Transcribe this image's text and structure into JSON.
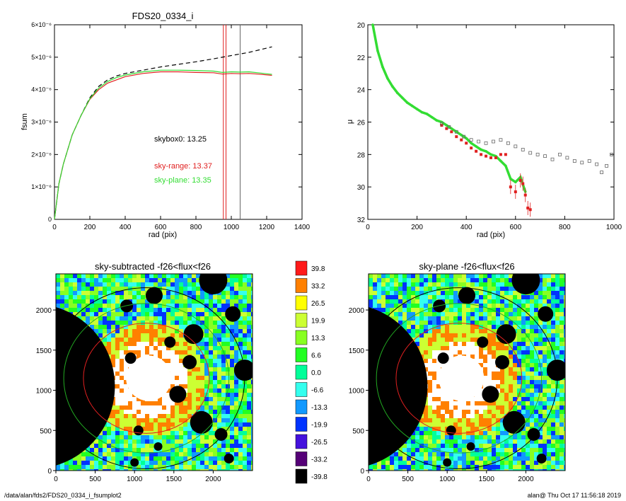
{
  "footer": {
    "path": "/data/alan/fds2/FDS20_0334_i_fsumplot2",
    "stamp": "alan@  Thu Oct 17 11:56:18 2019"
  },
  "colors": {
    "skybox0": "#000000",
    "sky_range": "#e02020",
    "sky_plane": "#33dd33",
    "axis": "#000000",
    "grey_points": "#666666"
  },
  "chart_data": [
    {
      "type": "line",
      "title": "FDS20_0334_i",
      "xlabel": "rad (pix)",
      "ylabel": "fsum",
      "xlim": [
        0,
        1400
      ],
      "ylim": [
        0,
        6e-06
      ],
      "xticks": [
        "0",
        "200",
        "400",
        "600",
        "800",
        "1000",
        "1200",
        "1400"
      ],
      "yticks": [
        "0",
        "1×10⁻⁶",
        "2×10⁻⁶",
        "3×10⁻⁶",
        "4×10⁻⁶",
        "5×10⁻⁶",
        "6×10⁻⁶"
      ],
      "annotations": [
        {
          "text": "skybox0: 13.25",
          "color": "#000000"
        },
        {
          "text": "sky-range: 13.37",
          "color": "#e02020"
        },
        {
          "text": "sky-plane: 13.35",
          "color": "#33dd33"
        }
      ],
      "vlines": [
        {
          "x": 955,
          "color": "#e02020"
        },
        {
          "x": 970,
          "color": "#e02020"
        },
        {
          "x": 1050,
          "color": "#666666"
        }
      ],
      "series": [
        {
          "key": "skybox0",
          "dashed": true,
          "x": [
            0,
            25,
            50,
            100,
            150,
            200,
            250,
            300,
            350,
            400,
            500,
            600,
            700,
            800,
            900,
            1000,
            1100,
            1230
          ],
          "y": [
            0,
            1.1e-06,
            1.7e-06,
            2.6e-06,
            3.2e-06,
            3.75e-06,
            4.1e-06,
            4.3e-06,
            4.42e-06,
            4.5e-06,
            4.6e-06,
            4.7e-06,
            4.78e-06,
            4.86e-06,
            4.95e-06,
            5.05e-06,
            5.15e-06,
            5.32e-06
          ]
        },
        {
          "key": "sky_range",
          "dashed": false,
          "x": [
            0,
            25,
            50,
            100,
            150,
            200,
            250,
            300,
            350,
            400,
            500,
            600,
            700,
            800,
            900,
            950,
            1000,
            1050,
            1100,
            1150,
            1230
          ],
          "y": [
            0,
            1.1e-06,
            1.7e-06,
            2.6e-06,
            3.2e-06,
            3.7e-06,
            4e-06,
            4.2e-06,
            4.3e-06,
            4.4e-06,
            4.5e-06,
            4.55e-06,
            4.55e-06,
            4.53e-06,
            4.52e-06,
            4.48e-06,
            4.5e-06,
            4.49e-06,
            4.5e-06,
            4.48e-06,
            4.44e-06
          ]
        },
        {
          "key": "sky_plane",
          "dashed": false,
          "x": [
            0,
            25,
            50,
            100,
            150,
            200,
            250,
            300,
            350,
            400,
            500,
            600,
            700,
            800,
            900,
            950,
            1000,
            1050,
            1100,
            1150,
            1230
          ],
          "y": [
            0,
            1.1e-06,
            1.7e-06,
            2.6e-06,
            3.2e-06,
            3.72e-06,
            4.05e-06,
            4.25e-06,
            4.37e-06,
            4.45e-06,
            4.55e-06,
            4.6e-06,
            4.6e-06,
            4.59e-06,
            4.57e-06,
            4.53e-06,
            4.55e-06,
            4.54e-06,
            4.55e-06,
            4.52e-06,
            4.47e-06
          ]
        }
      ]
    },
    {
      "type": "scatter",
      "title": "",
      "xlabel": "rad (pix)",
      "ylabel": "μ",
      "xlim": [
        0,
        1000
      ],
      "ylim": [
        32,
        20
      ],
      "xticks": [
        "0",
        "200",
        "400",
        "600",
        "800",
        "1000"
      ],
      "yticks": [
        "20",
        "22",
        "24",
        "26",
        "28",
        "30",
        "32"
      ],
      "series": [
        {
          "key": "sky_plane_profile",
          "x": [
            20,
            40,
            60,
            80,
            100,
            120,
            140,
            160,
            180,
            200,
            220,
            240,
            260,
            280,
            300,
            320,
            340,
            360,
            380,
            400,
            420,
            440,
            460,
            480,
            500,
            520,
            540,
            560,
            580,
            600,
            620,
            640
          ],
          "y": [
            20.0,
            21.6,
            22.6,
            23.3,
            23.8,
            24.2,
            24.5,
            24.8,
            25.0,
            25.2,
            25.4,
            25.5,
            25.7,
            25.9,
            26.0,
            26.2,
            26.4,
            26.6,
            26.8,
            27.0,
            27.3,
            27.5,
            27.7,
            27.8,
            28.0,
            28.1,
            28.4,
            28.7,
            29.5,
            29.7,
            29.4,
            30.3
          ]
        },
        {
          "key": "sky_range_profile",
          "x": [
            300,
            320,
            340,
            360,
            380,
            400,
            420,
            440,
            460,
            480,
            500,
            520,
            540,
            560,
            580,
            600,
            620,
            630,
            640,
            650,
            660
          ],
          "y": [
            26.2,
            26.4,
            26.6,
            26.9,
            27.1,
            27.3,
            27.6,
            27.8,
            28.0,
            28.1,
            28.2,
            28.2,
            28.0,
            28.0,
            30.0,
            30.3,
            29.6,
            29.8,
            30.5,
            31.3,
            31.4
          ]
        },
        {
          "key": "skybox0_profile",
          "x": [
            300,
            330,
            360,
            390,
            420,
            450,
            480,
            510,
            540,
            570,
            600,
            630,
            660,
            690,
            720,
            750,
            780,
            810,
            840,
            870,
            900,
            930,
            950,
            970,
            990
          ],
          "y": [
            26.1,
            26.3,
            26.6,
            26.9,
            27.1,
            27.2,
            27.3,
            27.2,
            27.1,
            27.3,
            27.5,
            27.7,
            27.9,
            28.0,
            28.1,
            28.3,
            28.0,
            28.2,
            28.4,
            28.5,
            28.4,
            28.6,
            29.1,
            28.7,
            28.0
          ]
        }
      ]
    },
    {
      "type": "heatmap",
      "title": "sky-subtracted -f26<flux<f26",
      "xticks": [
        "0",
        "500",
        "1000",
        "1500",
        "2000"
      ],
      "yticks": [
        "0",
        "500",
        "1000",
        "1500",
        "2000"
      ],
      "xlim": [
        0,
        2500
      ],
      "ylim": [
        0,
        2450
      ]
    },
    {
      "type": "heatmap",
      "title": "sky-plane -f26<flux<f26",
      "xticks": [
        "0",
        "500",
        "1000",
        "1500",
        "2000"
      ],
      "yticks": [
        "0",
        "500",
        "1000",
        "1500",
        "2000"
      ],
      "xlim": [
        0,
        2500
      ],
      "ylim": [
        0,
        2450
      ]
    },
    {
      "type": "table",
      "title": "",
      "legend": [
        {
          "label": "39.8",
          "color": "#ff1a1a"
        },
        {
          "label": "33.2",
          "color": "#ff8000"
        },
        {
          "label": "26.5",
          "color": "#ffff00"
        },
        {
          "label": "19.9",
          "color": "#ccff33"
        },
        {
          "label": "13.3",
          "color": "#88ff22"
        },
        {
          "label": "6.6",
          "color": "#22ff22"
        },
        {
          "label": "0.0",
          "color": "#00ff99"
        },
        {
          "label": "-6.6",
          "color": "#33ffee"
        },
        {
          "label": "-13.3",
          "color": "#1199ff"
        },
        {
          "label": "-19.9",
          "color": "#0033ff"
        },
        {
          "label": "-26.5",
          "color": "#4411dd"
        },
        {
          "label": "-33.2",
          "color": "#550077"
        },
        {
          "label": "-39.8",
          "color": "#000000"
        }
      ]
    }
  ]
}
